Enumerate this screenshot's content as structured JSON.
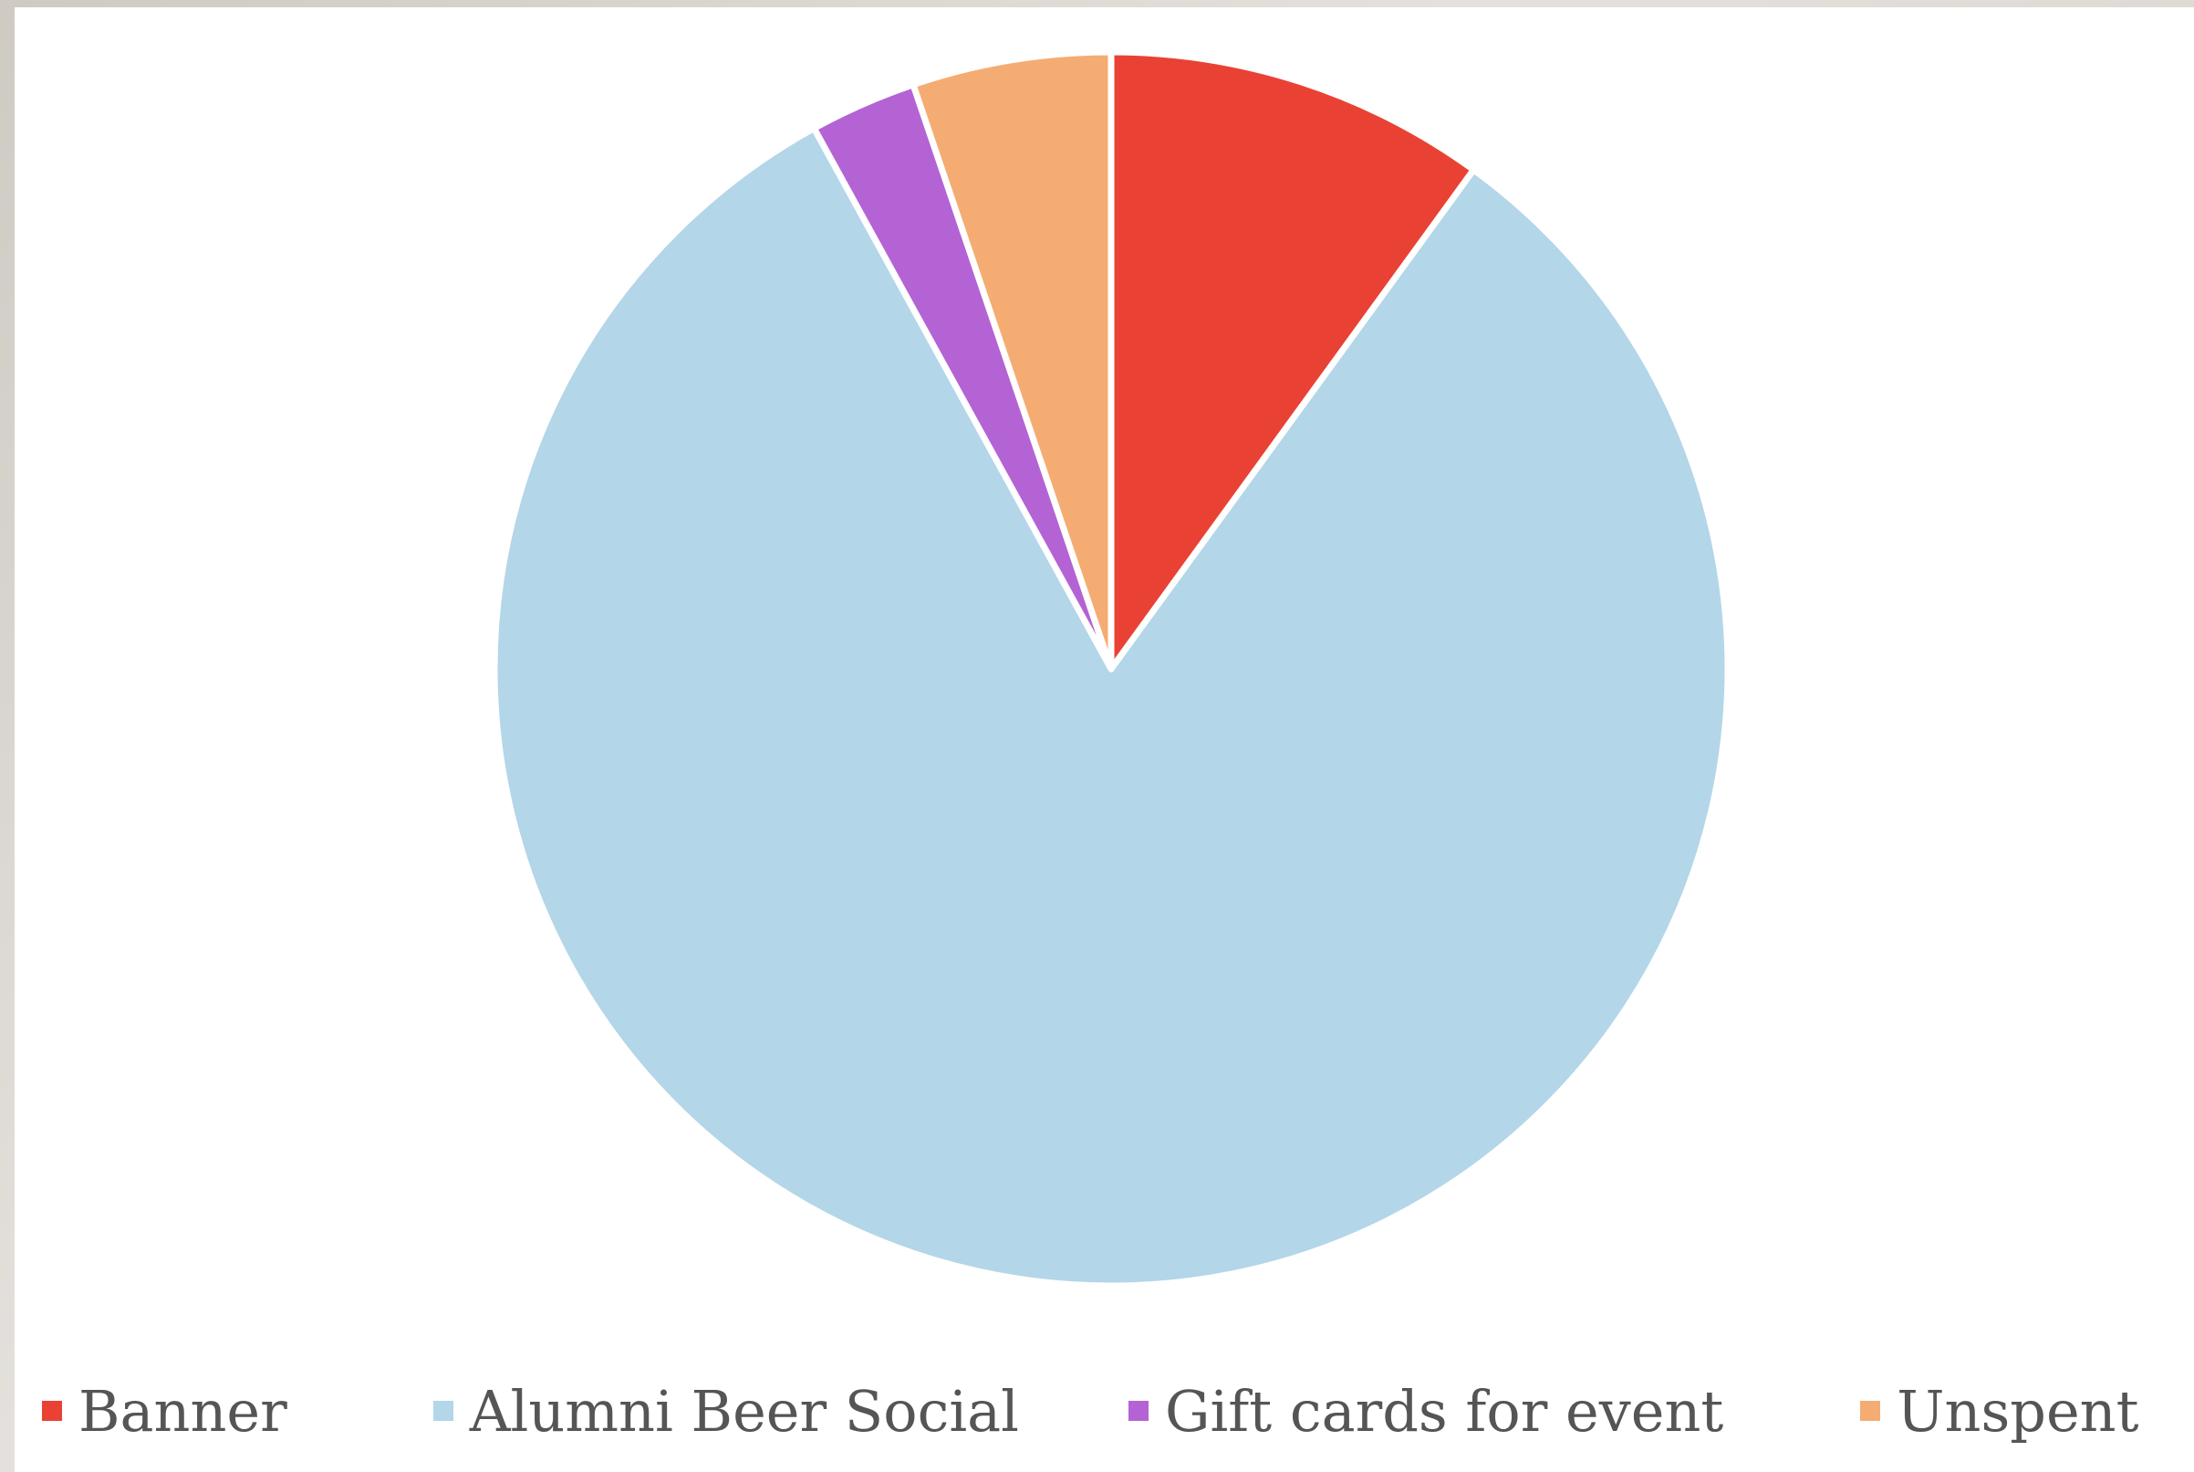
{
  "chart_data": {
    "type": "pie",
    "title": "",
    "start_angle_deg": 0,
    "direction": "clockwise",
    "series": [
      {
        "categories": [
          "Banner",
          "Alumni Beer Social",
          "Gift cards for event",
          "Unspent"
        ],
        "values": [
          10.0,
          82.0,
          2.8,
          5.2
        ],
        "colors": [
          "#e94234",
          "#b3d6e8",
          "#b463d4",
          "#f4ac73"
        ]
      }
    ],
    "legend": {
      "position": "bottom",
      "entries": [
        "Banner",
        "Alumni Beer Social",
        "Gift cards for event",
        "Unspent"
      ]
    }
  }
}
